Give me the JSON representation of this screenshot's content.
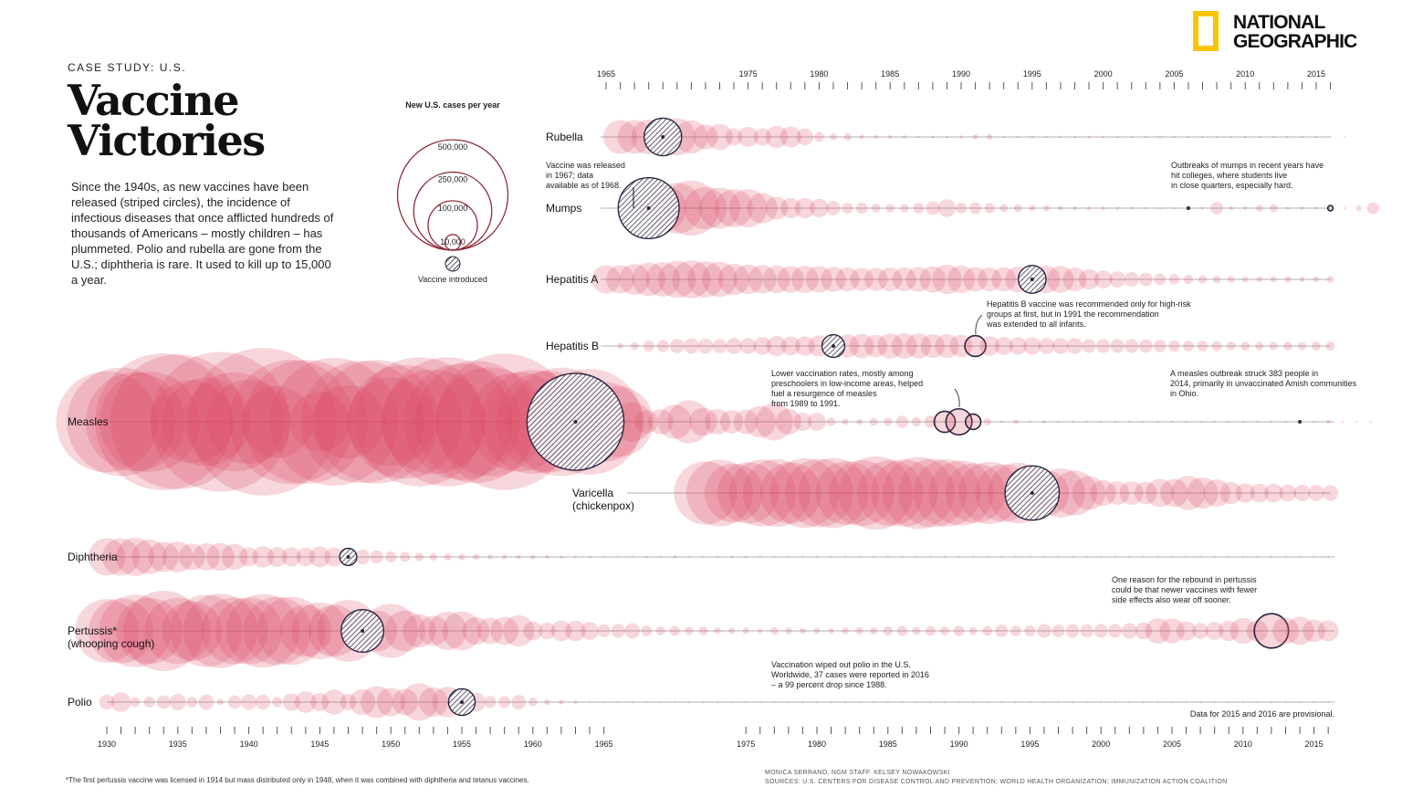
{
  "header": {
    "eyebrow": "CASE STUDY: U.S.",
    "title_line1": "Vaccine",
    "title_line2": "Victories",
    "intro": "Since the 1940s, as new vaccines have been released (striped circles), the incidence of infectious diseases that once afflicted hundreds of thousands of Americans – mostly children – has plummeted. Polio and rubella are gone from the U.S.; diphtheria is rare. It used to kill up to 15,000 a year."
  },
  "logo": {
    "line1": "NATIONAL",
    "line2": "GEOGRAPHIC",
    "frame_color": "#f7c600"
  },
  "legend": {
    "title": "New U.S. cases per year",
    "sizes": [
      {
        "label": "500,000",
        "value": 500000
      },
      {
        "label": "250,000",
        "value": 250000
      },
      {
        "label": "100,000",
        "value": 100000
      },
      {
        "label": "10,000",
        "value": 10000
      }
    ],
    "vaccine_label": "Vaccine introduced"
  },
  "colors": {
    "bubble": "#d9455f",
    "outline": "#8a1e2c",
    "vaccine": "#2a2440",
    "line": "#999999"
  },
  "chart_data": {
    "type": "scatter",
    "encoding": "bubble area proportional to new U.S. cases per year; striped bubble marks the year the vaccine was introduced",
    "top_axis": {
      "start": 1965,
      "end": 2016,
      "labels": [
        1965,
        1975,
        1980,
        1985,
        1990,
        1995,
        2000,
        2005,
        2010,
        2015
      ]
    },
    "bottom_axis": {
      "start": 1930,
      "end": 2016,
      "labels": [
        1930,
        1935,
        1940,
        1945,
        1950,
        1955,
        1960,
        1965,
        1975,
        1980,
        1985,
        1990,
        1995,
        2000,
        2005,
        2010,
        2015
      ]
    },
    "series": [
      {
        "name": "Rubella",
        "axis": "top",
        "start": 1966,
        "vaccine_year": 1969,
        "cases": [
          46975,
          46888,
          50000,
          57686,
          56552,
          45086,
          25507,
          27804,
          11917,
          16652,
          12491,
          20395,
          18269,
          11795,
          3904,
          2077,
          2325,
          970,
          752,
          630,
          551,
          221,
          306,
          225,
          396,
          1125,
          1401,
          160,
          192,
          227,
          128,
          238,
          181,
          364,
          267,
          176,
          23,
          18,
          7,
          10,
          17,
          11,
          11,
          16,
          3,
          5,
          4,
          9,
          9,
          6,
          5,
          1
        ]
      },
      {
        "name": "Mumps",
        "axis": "top",
        "start": 1968,
        "vaccine_year": 1968,
        "cases": [
          152209,
          90918,
          104953,
          124939,
          74215,
          69612,
          59128,
          59647,
          38492,
          21436,
          16817,
          16817,
          14225,
          8576,
          4941,
          5270,
          3355,
          3021,
          2982,
          4941,
          7790,
          12848,
          4866,
          5712,
          4264,
          2572,
          2572,
          1692,
          1537,
          906,
          751,
          683,
          666,
          387,
          338,
          266,
          270,
          231,
          258,
          314,
          6584,
          800,
          454,
          1991,
          2612,
          370,
          584,
          438,
          1151,
          229,
          1329,
          5833
        ],
        "highlight_years": [
          2006,
          2016
        ]
      },
      {
        "name": "Hepatitis A",
        "axis": "top",
        "start": 1965,
        "vaccine_year": 1995,
        "cases": [
          32859,
          32859,
          38909,
          45893,
          48416,
          56797,
          59606,
          54074,
          50749,
          40358,
          35855,
          33288,
          31153,
          29500,
          30407,
          29087,
          25802,
          23403,
          21532,
          22040,
          23210,
          23430,
          25280,
          28507,
          35821,
          31441,
          24378,
          23112,
          24238,
          26796,
          31582,
          31032,
          30021,
          23229,
          17047,
          13397,
          10609,
          8795,
          7653,
          5683,
          4488,
          3579,
          2979,
          2585,
          1987,
          1670,
          1398,
          1562,
          1781,
          1239,
          1390,
          2007
        ]
      },
      {
        "name": "Hepatitis B",
        "axis": "top",
        "start": 1966,
        "vaccine_year": 1981,
        "cases": [
          1497,
          2458,
          4829,
          5909,
          8310,
          9556,
          9402,
          8451,
          10631,
          10416,
          13121,
          16831,
          15016,
          15452,
          19015,
          21152,
          22177,
          24318,
          21102,
          26115,
          26611,
          25916,
          23177,
          23419,
          21102,
          18003,
          16126,
          13361,
          12517,
          12517,
          10637,
          10416,
          10258,
          7694,
          8036,
          7843,
          7996,
          7526,
          6212,
          5119,
          4713,
          4519,
          4033,
          3374,
          3350,
          2890,
          2895,
          3050,
          2791,
          3216,
          3370
        ],
        "highlight_years": [
          1991
        ]
      },
      {
        "name": "Measles",
        "axis": "bottom",
        "start": 1930,
        "vaccine_year": 1963,
        "cases": [
          419465,
          481530,
          402445,
          412950,
          770000,
          745000,
          282700,
          319000,
          800000,
          403300,
          291162,
          894134,
          211269,
          633842,
          630000,
          146013,
          670000,
          222375,
          615104,
          626281,
          319124,
          530118,
          683077,
          449146,
          682720,
          555156,
          611936,
          486799,
          763094,
          406162,
          441703,
          423919,
          481530,
          385156,
          458083,
          261904,
          204136,
          62705,
          22231,
          25826,
          47351,
          75290,
          32275,
          26690,
          22094,
          24374,
          41126,
          57345,
          26871,
          13597,
          13506,
          3124,
          1714,
          1497,
          2587,
          2822,
          6282,
          3655,
          6282,
          18193,
          27786,
          9643,
          2237,
          312,
          963,
          309,
          508,
          138,
          100,
          100,
          86,
          116,
          44,
          56,
          55,
          37,
          66,
          43,
          55,
          140,
          71,
          43,
          220,
          55,
          63,
          187,
          667,
          188,
          86,
          70
        ],
        "highlight_years": [
          1989,
          1990,
          1991,
          2014
        ]
      },
      {
        "name": "Varicella",
        "subname": "(chickenpox)",
        "axis": "top",
        "start": 1972,
        "vaccine_year": 1995,
        "cases": [
          164114,
          182927,
          141495,
          154248,
          183990,
          188396,
          154089,
          199081,
          190894,
          200766,
          167423,
          177462,
          221983,
          178162,
          183243,
          213196,
          192857,
          185441,
          173099,
          147076,
          158364,
          134722,
          151219,
          120624,
          83511,
          98727,
          82455,
          46016,
          27382,
          22536,
          22841,
          20948,
          32931,
          32242,
          48445,
          40023,
          30386,
          20480,
          15427,
          14513,
          14505,
          12000,
          11200,
          10500,
          9900
        ]
      },
      {
        "name": "Diphtheria",
        "axis": "bottom",
        "start": 1930,
        "vaccine_year": 1947,
        "cases": [
          57000,
          57000,
          60000,
          50000,
          38000,
          39000,
          29000,
          31000,
          32000,
          28000,
          15000,
          19000,
          16000,
          15000,
          14000,
          18000,
          15000,
          12000,
          9000,
          7000,
          5000,
          4000,
          3000,
          2300,
          2000,
          1800,
          1500,
          1100,
          900,
          800,
          900,
          600,
          400,
          300,
          300,
          200,
          200,
          180,
          250,
          240,
          400,
          210,
          150,
          230,
          270,
          300,
          130,
          80,
          80,
          59,
          5,
          5,
          3,
          2,
          1,
          3,
          2,
          3,
          2,
          2,
          4,
          3,
          3,
          2,
          1,
          1,
          1,
          1,
          1,
          1,
          1,
          1,
          1,
          1,
          1,
          1,
          1,
          1,
          1,
          1,
          1,
          1,
          1,
          1,
          1,
          1,
          1
        ]
      },
      {
        "name": "Pertussis*",
        "subname": "(whooping cough)",
        "axis": "bottom",
        "start": 1930,
        "vaccine_year": 1948,
        "cases": [
          166000,
          172000,
          215000,
          179000,
          265000,
          180000,
          147000,
          214000,
          227000,
          182000,
          184000,
          222000,
          191000,
          191000,
          109000,
          133000,
          109000,
          156000,
          74000,
          69000,
          120000,
          68000,
          45000,
          37000,
          60000,
          62000,
          31000,
          28000,
          32000,
          40000,
          14800,
          11400,
          17700,
          17100,
          13000,
          6800,
          7700,
          9700,
          4800,
          3300,
          4200,
          3000,
          3300,
          1800,
          1700,
          1800,
          1000,
          2300,
          2100,
          1600,
          1700,
          1200,
          1900,
          2400,
          2200,
          3600,
          4200,
          2800,
          4200,
          3500,
          4600,
          2700,
          4100,
          6600,
          4600,
          5100,
          7800,
          6600,
          7400,
          7300,
          7800,
          7500,
          9800,
          11600,
          25800,
          25600,
          15600,
          10400,
          13300,
          16800,
          27500,
          18700,
          48300,
          28600,
          32900,
          20800,
          18000
        ],
        "highlight_years": [
          2012
        ]
      },
      {
        "name": "Polio",
        "axis": "bottom",
        "start": 1930,
        "vaccine_year": 1955,
        "cases": [
          9220,
          15870,
          3820,
          5000,
          7510,
          10840,
          4520,
          9510,
          1710,
          7340,
          9800,
          9090,
          4170,
          12450,
          19030,
          13620,
          25700,
          10830,
          27730,
          42030,
          33300,
          28390,
          57880,
          35590,
          38480,
          28980,
          15140,
          5480,
          5790,
          8430,
          3190,
          1310,
          910,
          450,
          120,
          70,
          110,
          41,
          50,
          20,
          33,
          21,
          31,
          8,
          7,
          8,
          14,
          18,
          15,
          12,
          11,
          8,
          8,
          9,
          8,
          7,
          8,
          10,
          8,
          10,
          10,
          10,
          11,
          10,
          8,
          6,
          4,
          5,
          3,
          2,
          1,
          1,
          1,
          1,
          1,
          1,
          1,
          1,
          1,
          1,
          1,
          1,
          1,
          1,
          1,
          1,
          1
        ]
      }
    ],
    "annotations": [
      "Vaccine was released in 1967; data available as of 1968.",
      "Outbreaks of mumps in recent years have hit colleges, where students live in close quarters, especially hard.",
      "Hepatitis B vaccine was recommended only for high-risk groups at first, but in 1991 the recommendation was extended to all infants.",
      "Lower vaccination rates, mostly among preschoolers in low-income areas, helped fuel a resurgence of measles from 1989 to 1991.",
      "A measles outbreak struck 383 people in 2014, primarily in unvaccinated Amish communities in Ohio.",
      "One reason for the rebound in pertussis could be that newer vaccines with fewer side effects also wear off sooner.",
      "Vaccination wiped out polio in the U.S. Worldwide, 37 cases were reported in 2016 – a 99 percent drop since 1988.",
      "Data for 2015 and 2016 are provisional."
    ]
  },
  "footer": {
    "footnote": "*The first pertussis vaccine was licensed in 1914 but mass distributed only in 1948, when it was combined with diphtheria and tetanus vaccines.",
    "credits": "MONICA SERRANO, NGM STAFF. KELSEY NOWAKOWSKI",
    "sources": "SOURCES: U.S. CENTERS FOR DISEASE CONTROL AND PREVENTION; WORLD HEALTH ORGANIZATION; IMMUNIZATION ACTION COALITION"
  }
}
